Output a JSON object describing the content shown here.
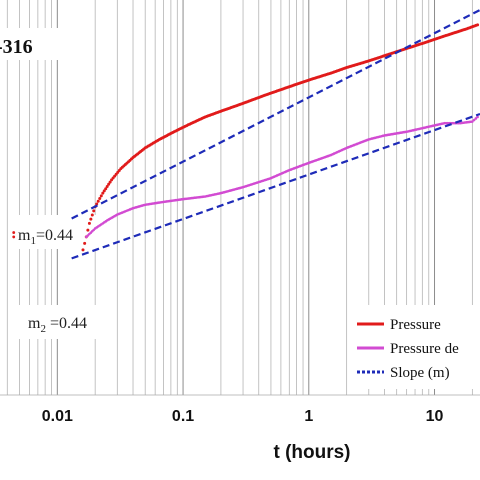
{
  "chart_data": {
    "type": "scatter",
    "title": "-316",
    "xlabel": "t (hours)",
    "ylabel": "",
    "x_scale": "log",
    "y_scale": "log",
    "xlim": [
      0.0035,
      23
    ],
    "ylim": [
      0.012,
      2.4
    ],
    "grid": "vertical log grid lines",
    "x_tick_labels": [
      "0.01",
      "0.1",
      "1",
      "10"
    ],
    "x_tick_values": [
      0.01,
      0.1,
      1,
      10
    ],
    "legend_position": "bottom-right",
    "annotations": [
      {
        "label_main": "m",
        "label_sub": "1",
        "label_rest": "=0.44"
      },
      {
        "label_main": "m",
        "label_sub": "2",
        "label_rest": " =0.44"
      }
    ],
    "series": [
      {
        "name": "Pressure",
        "color": "#e11b1b",
        "style": "points-dense",
        "points": [
          [
            0.0045,
            0.1
          ],
          [
            0.0045,
            0.106
          ],
          [
            0.016,
            0.084
          ],
          [
            0.017,
            0.1
          ],
          [
            0.018,
            0.12
          ],
          [
            0.02,
            0.15
          ],
          [
            0.023,
            0.18
          ],
          [
            0.027,
            0.215
          ],
          [
            0.032,
            0.25
          ],
          [
            0.04,
            0.29
          ],
          [
            0.05,
            0.33
          ],
          [
            0.065,
            0.37
          ],
          [
            0.085,
            0.41
          ],
          [
            0.11,
            0.45
          ],
          [
            0.15,
            0.5
          ],
          [
            0.2,
            0.54
          ],
          [
            0.3,
            0.6
          ],
          [
            0.45,
            0.67
          ],
          [
            0.7,
            0.75
          ],
          [
            1.0,
            0.82
          ],
          [
            1.5,
            0.9
          ],
          [
            2.0,
            0.97
          ],
          [
            3.0,
            1.06
          ],
          [
            5.0,
            1.2
          ],
          [
            8.0,
            1.34
          ],
          [
            12.0,
            1.48
          ],
          [
            18.0,
            1.63
          ],
          [
            22.0,
            1.72
          ]
        ]
      },
      {
        "name": "Pressure de",
        "color": "#d24bd2",
        "style": "points-dense",
        "points": [
          [
            0.017,
            0.1
          ],
          [
            0.02,
            0.112
          ],
          [
            0.025,
            0.125
          ],
          [
            0.03,
            0.135
          ],
          [
            0.04,
            0.147
          ],
          [
            0.05,
            0.154
          ],
          [
            0.07,
            0.16
          ],
          [
            0.1,
            0.166
          ],
          [
            0.15,
            0.172
          ],
          [
            0.2,
            0.18
          ],
          [
            0.3,
            0.195
          ],
          [
            0.5,
            0.22
          ],
          [
            0.7,
            0.245
          ],
          [
            1.0,
            0.27
          ],
          [
            1.5,
            0.3
          ],
          [
            2.0,
            0.33
          ],
          [
            3.0,
            0.37
          ],
          [
            4.0,
            0.39
          ],
          [
            6.0,
            0.41
          ],
          [
            8.0,
            0.43
          ],
          [
            12.0,
            0.46
          ],
          [
            16.0,
            0.46
          ],
          [
            20.0,
            0.47
          ],
          [
            22.0,
            0.5
          ]
        ]
      },
      {
        "name": "Slope (m)",
        "color": "#1e2bb8",
        "style": "dashed-line",
        "lines": [
          {
            "from": [
              0.013,
              0.128
            ],
            "to": [
              23,
              2.1
            ]
          },
          {
            "from": [
              0.013,
              0.075
            ],
            "to": [
              23,
              0.52
            ]
          }
        ]
      }
    ]
  }
}
